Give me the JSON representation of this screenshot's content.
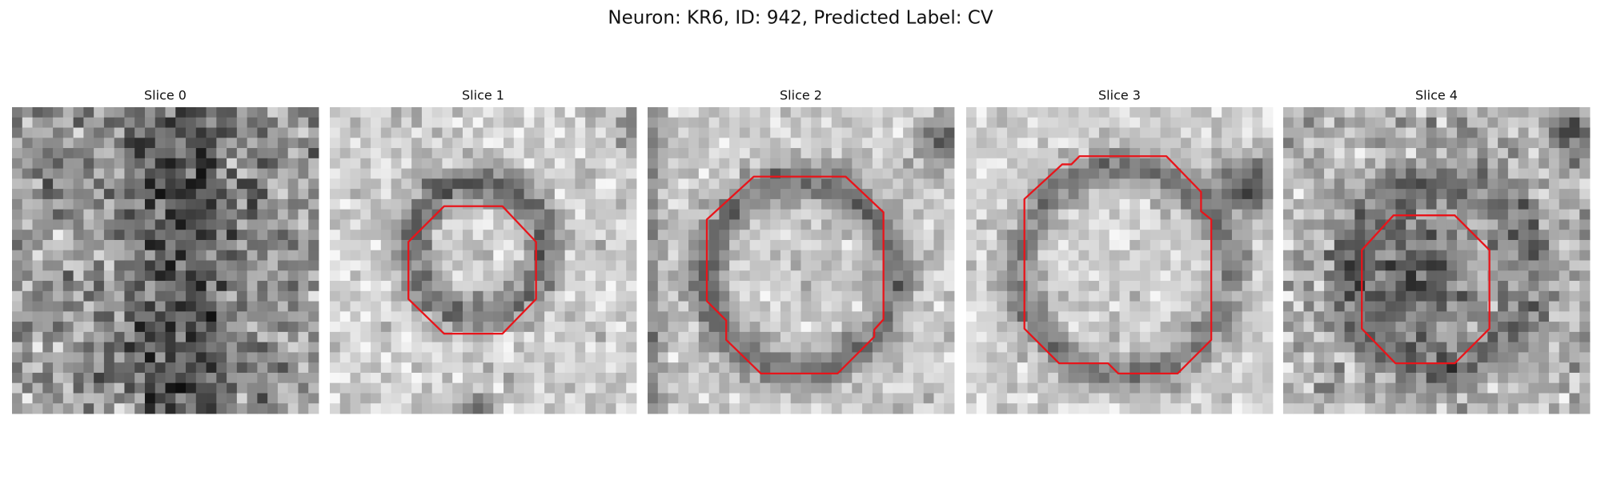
{
  "title": "Neuron: KR6, ID: 942, Predicted Label: CV",
  "panels": [
    {
      "title": "Slice 0"
    },
    {
      "title": "Slice 1"
    },
    {
      "title": "Slice 2"
    },
    {
      "title": "Slice 3"
    },
    {
      "title": "Slice 4"
    }
  ]
}
